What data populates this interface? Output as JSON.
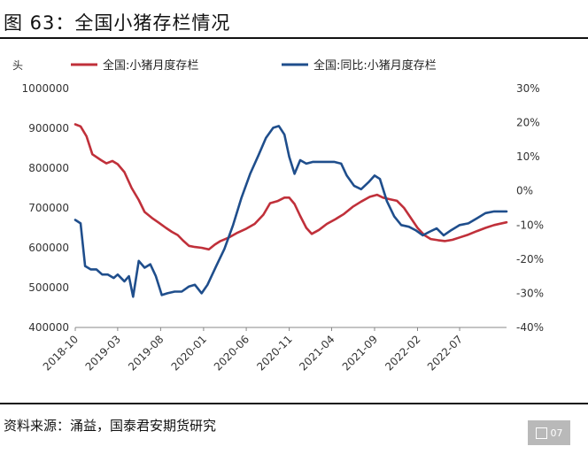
{
  "header": {
    "title": "图 63：全国小猪存栏情况"
  },
  "footer": {
    "source": "资料来源：涌益，国泰君安期货研究",
    "page_badge": "07"
  },
  "chart_data": {
    "type": "line",
    "title": "",
    "left_axis_unit": "头",
    "ylim_left": [
      400000,
      1000000
    ],
    "ylim_right": [
      -40,
      30
    ],
    "left_ticks": [
      {
        "value": 400000,
        "label": "400000"
      },
      {
        "value": 500000,
        "label": "500000"
      },
      {
        "value": 600000,
        "label": "600000"
      },
      {
        "value": 700000,
        "label": "700000"
      },
      {
        "value": 800000,
        "label": "800000"
      },
      {
        "value": 900000,
        "label": "900000"
      },
      {
        "value": 1000000,
        "label": "1000000"
      }
    ],
    "right_ticks": [
      {
        "value": -40,
        "label": "-40%"
      },
      {
        "value": -30,
        "label": "-30%"
      },
      {
        "value": -20,
        "label": "-20%"
      },
      {
        "value": -10,
        "label": "-10%"
      },
      {
        "value": 0,
        "label": "0%"
      },
      {
        "value": 10,
        "label": "10%"
      },
      {
        "value": 20,
        "label": "20%"
      },
      {
        "value": 30,
        "label": "30%"
      }
    ],
    "x_ticks": [
      {
        "date": "2018-10-01",
        "label": "2018-10"
      },
      {
        "date": "2019-03-01",
        "label": "2019-03"
      },
      {
        "date": "2019-08-01",
        "label": "2019-08"
      },
      {
        "date": "2020-01-01",
        "label": "2020-01"
      },
      {
        "date": "2020-06-01",
        "label": "2020-06"
      },
      {
        "date": "2020-11-01",
        "label": "2020-11"
      },
      {
        "date": "2021-04-01",
        "label": "2021-04"
      },
      {
        "date": "2021-09-01",
        "label": "2021-09"
      },
      {
        "date": "2022-02-01",
        "label": "2022-02"
      },
      {
        "date": "2022-07-01",
        "label": "2022-07"
      }
    ],
    "xlim": [
      "2018-10-01",
      "2022-12-15"
    ],
    "grid": false,
    "legend_position": "top",
    "series": [
      {
        "name": "全国:小猪月度存栏",
        "axis": "left",
        "color": "#C0303A",
        "points": [
          [
            "2018-10-01",
            910000
          ],
          [
            "2018-10-20",
            905000
          ],
          [
            "2018-11-10",
            880000
          ],
          [
            "2018-12-01",
            835000
          ],
          [
            "2019-01-01",
            820000
          ],
          [
            "2019-01-20",
            812000
          ],
          [
            "2019-02-10",
            818000
          ],
          [
            "2019-03-01",
            810000
          ],
          [
            "2019-03-25",
            790000
          ],
          [
            "2019-04-20",
            750000
          ],
          [
            "2019-05-15",
            720000
          ],
          [
            "2019-06-05",
            690000
          ],
          [
            "2019-07-01",
            675000
          ],
          [
            "2019-07-25",
            663000
          ],
          [
            "2019-08-20",
            650000
          ],
          [
            "2019-09-10",
            640000
          ],
          [
            "2019-10-01",
            632000
          ],
          [
            "2019-10-20",
            618000
          ],
          [
            "2019-11-10",
            605000
          ],
          [
            "2019-12-01",
            602000
          ],
          [
            "2019-12-25",
            600000
          ],
          [
            "2020-01-20",
            596000
          ],
          [
            "2020-02-10",
            608000
          ],
          [
            "2020-03-01",
            617000
          ],
          [
            "2020-04-01",
            626000
          ],
          [
            "2020-05-01",
            638000
          ],
          [
            "2020-06-01",
            648000
          ],
          [
            "2020-07-01",
            660000
          ],
          [
            "2020-08-01",
            683000
          ],
          [
            "2020-08-25",
            712000
          ],
          [
            "2020-09-20",
            717000
          ],
          [
            "2020-10-15",
            726000
          ],
          [
            "2020-11-01",
            726000
          ],
          [
            "2020-11-20",
            710000
          ],
          [
            "2020-12-10",
            680000
          ],
          [
            "2021-01-01",
            650000
          ],
          [
            "2021-01-20",
            635000
          ],
          [
            "2021-02-15",
            645000
          ],
          [
            "2021-03-15",
            660000
          ],
          [
            "2021-04-15",
            672000
          ],
          [
            "2021-05-15",
            685000
          ],
          [
            "2021-06-15",
            703000
          ],
          [
            "2021-07-15",
            716000
          ],
          [
            "2021-08-15",
            728000
          ],
          [
            "2021-09-10",
            733000
          ],
          [
            "2021-10-01",
            726000
          ],
          [
            "2021-10-25",
            722000
          ],
          [
            "2021-11-20",
            718000
          ],
          [
            "2021-12-15",
            700000
          ],
          [
            "2022-01-10",
            673000
          ],
          [
            "2022-02-01",
            650000
          ],
          [
            "2022-02-25",
            632000
          ],
          [
            "2022-03-20",
            622000
          ],
          [
            "2022-04-15",
            619000
          ],
          [
            "2022-05-10",
            617000
          ],
          [
            "2022-06-05",
            620000
          ],
          [
            "2022-07-01",
            626000
          ],
          [
            "2022-08-01",
            633000
          ],
          [
            "2022-09-01",
            642000
          ],
          [
            "2022-10-01",
            650000
          ],
          [
            "2022-11-01",
            657000
          ],
          [
            "2022-12-15",
            664000
          ]
        ]
      },
      {
        "name": "全国:同比:小猪月度存栏",
        "axis": "right",
        "color": "#1F4E8C",
        "points": [
          [
            "2018-10-01",
            -8.5
          ],
          [
            "2018-10-20",
            -9.5
          ],
          [
            "2018-11-05",
            -22.0
          ],
          [
            "2018-11-25",
            -23.0
          ],
          [
            "2018-12-15",
            -23.0
          ],
          [
            "2019-01-05",
            -24.5
          ],
          [
            "2019-01-25",
            -24.5
          ],
          [
            "2019-02-15",
            -25.5
          ],
          [
            "2019-03-01",
            -24.5
          ],
          [
            "2019-03-25",
            -26.5
          ],
          [
            "2019-04-10",
            -25.0
          ],
          [
            "2019-04-25",
            -31.0
          ],
          [
            "2019-05-15",
            -20.5
          ],
          [
            "2019-06-05",
            -22.5
          ],
          [
            "2019-06-25",
            -21.5
          ],
          [
            "2019-07-15",
            -25.0
          ],
          [
            "2019-08-05",
            -30.5
          ],
          [
            "2019-08-25",
            -30.0
          ],
          [
            "2019-09-20",
            -29.5
          ],
          [
            "2019-10-15",
            -29.5
          ],
          [
            "2019-11-10",
            -28.0
          ],
          [
            "2019-12-01",
            -27.5
          ],
          [
            "2019-12-25",
            -30.0
          ],
          [
            "2020-01-15",
            -27.5
          ],
          [
            "2020-02-15",
            -22.0
          ],
          [
            "2020-03-15",
            -17.0
          ],
          [
            "2020-04-15",
            -10.0
          ],
          [
            "2020-05-15",
            -2.0
          ],
          [
            "2020-06-15",
            5.0
          ],
          [
            "2020-07-15",
            10.5
          ],
          [
            "2020-08-10",
            15.5
          ],
          [
            "2020-09-05",
            18.5
          ],
          [
            "2020-09-25",
            19.0
          ],
          [
            "2020-10-15",
            16.5
          ],
          [
            "2020-11-01",
            10.0
          ],
          [
            "2020-11-20",
            5.0
          ],
          [
            "2020-12-10",
            9.0
          ],
          [
            "2021-01-01",
            8.0
          ],
          [
            "2021-01-25",
            8.5
          ],
          [
            "2021-02-20",
            8.5
          ],
          [
            "2021-03-15",
            8.5
          ],
          [
            "2021-04-10",
            8.5
          ],
          [
            "2021-05-05",
            8.0
          ],
          [
            "2021-05-25",
            4.5
          ],
          [
            "2021-06-20",
            1.5
          ],
          [
            "2021-07-15",
            0.5
          ],
          [
            "2021-08-10",
            2.5
          ],
          [
            "2021-09-01",
            4.5
          ],
          [
            "2021-09-20",
            3.5
          ],
          [
            "2021-10-15",
            -3.0
          ],
          [
            "2021-11-10",
            -7.5
          ],
          [
            "2021-12-05",
            -10.0
          ],
          [
            "2022-01-01",
            -10.5
          ],
          [
            "2022-01-25",
            -11.5
          ],
          [
            "2022-02-20",
            -13.0
          ],
          [
            "2022-03-15",
            -12.0
          ],
          [
            "2022-04-10",
            -11.0
          ],
          [
            "2022-05-05",
            -13.0
          ],
          [
            "2022-06-01",
            -11.5
          ],
          [
            "2022-07-01",
            -10.0
          ],
          [
            "2022-08-01",
            -9.5
          ],
          [
            "2022-09-01",
            -8.0
          ],
          [
            "2022-10-01",
            -6.5
          ],
          [
            "2022-11-01",
            -6.0
          ],
          [
            "2022-12-15",
            -6.0
          ]
        ]
      }
    ]
  }
}
